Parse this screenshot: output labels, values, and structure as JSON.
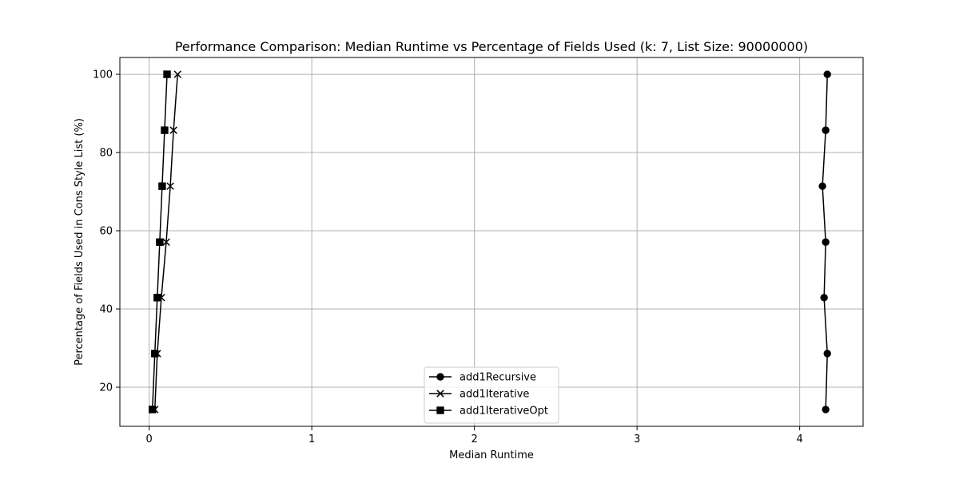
{
  "chart_data": {
    "type": "line",
    "title": "Performance Comparison: Median Runtime vs Percentage of Fields Used (k: 7, List Size: 90000000)",
    "xlabel": "Median Runtime",
    "ylabel": "Percentage of Fields Used in Cons Style List (%)",
    "xlim": [
      -0.18,
      4.39
    ],
    "ylim": [
      10,
      104.3
    ],
    "xticks": [
      0,
      1,
      2,
      3,
      4
    ],
    "yticks": [
      20,
      40,
      60,
      80,
      100
    ],
    "xtick_labels": [
      "0",
      "1",
      "2",
      "3",
      "4"
    ],
    "ytick_labels": [
      "20",
      "40",
      "60",
      "80",
      "100"
    ],
    "grid": true,
    "legend_position": "lower center",
    "line_color": "#000000",
    "grid_color": "#b0b0b0",
    "series": [
      {
        "name": "add1Recursive",
        "marker": "circle",
        "points": [
          {
            "x": 4.16,
            "y": 14.3
          },
          {
            "x": 4.17,
            "y": 28.6
          },
          {
            "x": 4.15,
            "y": 42.9
          },
          {
            "x": 4.16,
            "y": 57.1
          },
          {
            "x": 4.14,
            "y": 71.4
          },
          {
            "x": 4.16,
            "y": 85.7
          },
          {
            "x": 4.17,
            "y": 100.0
          }
        ]
      },
      {
        "name": "add1Iterative",
        "marker": "x",
        "points": [
          {
            "x": 0.035,
            "y": 14.3
          },
          {
            "x": 0.05,
            "y": 28.6
          },
          {
            "x": 0.075,
            "y": 42.9
          },
          {
            "x": 0.105,
            "y": 57.1
          },
          {
            "x": 0.13,
            "y": 71.4
          },
          {
            "x": 0.15,
            "y": 85.7
          },
          {
            "x": 0.175,
            "y": 100.0
          }
        ]
      },
      {
        "name": "add1IterativeOpt",
        "marker": "square",
        "points": [
          {
            "x": 0.02,
            "y": 14.3
          },
          {
            "x": 0.035,
            "y": 28.6
          },
          {
            "x": 0.05,
            "y": 42.9
          },
          {
            "x": 0.065,
            "y": 57.1
          },
          {
            "x": 0.08,
            "y": 71.4
          },
          {
            "x": 0.095,
            "y": 85.7
          },
          {
            "x": 0.11,
            "y": 100.0
          }
        ]
      }
    ]
  }
}
